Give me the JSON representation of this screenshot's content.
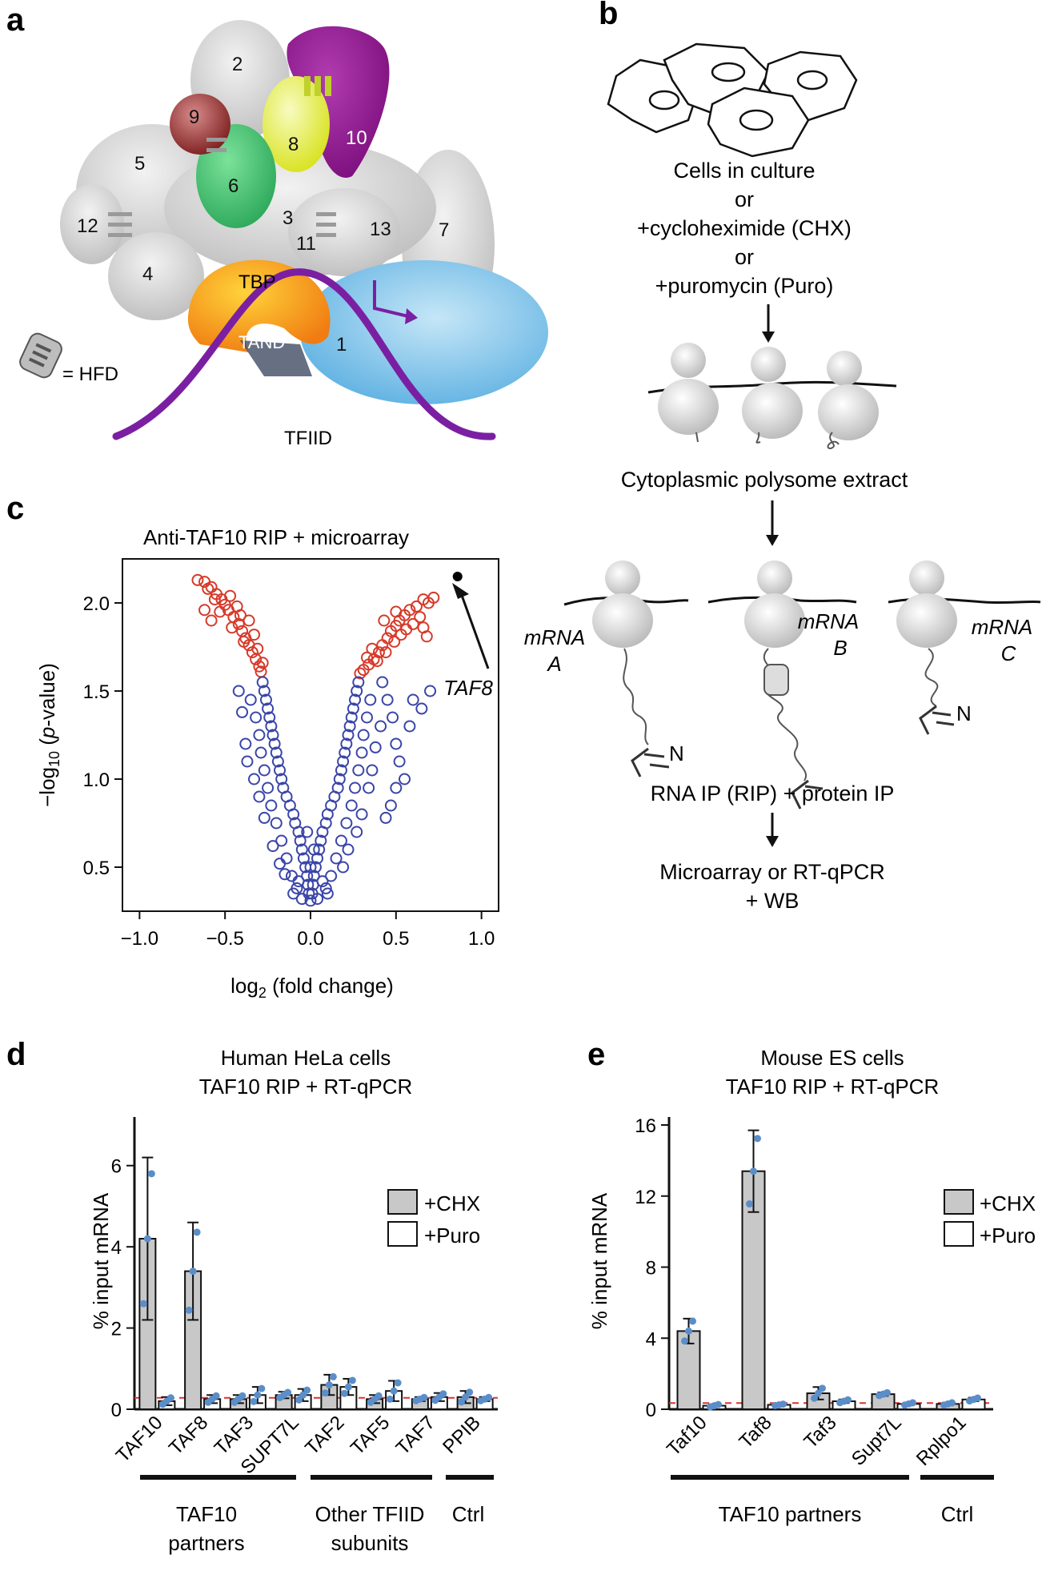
{
  "panel_labels": {
    "a": "a",
    "b": "b",
    "c": "c",
    "d": "d",
    "e": "e"
  },
  "panel_a": {
    "subunits": [
      "2",
      "9",
      "8",
      "10",
      "5",
      "6",
      "3",
      "12",
      "11",
      "13",
      "7",
      "4",
      "1"
    ],
    "tbp_label": "TBP",
    "tand_label": "TAND",
    "hfd_legend": "= HFD",
    "complex_label": "TFIID",
    "colors": {
      "taf10": "#8b1a8b",
      "taf8": "#e6ef3a",
      "taf6": "#3fbf6f",
      "taf9": "#8b2a2a",
      "tbp": "#f7a21b",
      "taf1": "#7cc3ea",
      "dna": "#7b1fa2",
      "grey": "#d9d9d9"
    }
  },
  "panel_b": {
    "conditions": [
      "Cells in culture",
      "or",
      "+cycloheximide (CHX)",
      "or",
      "+puromycin (Puro)"
    ],
    "step2": "Cytoplasmic polysome extract",
    "mrna_labels": [
      [
        "mRNA",
        "A"
      ],
      [
        "mRNA",
        "B"
      ],
      [
        "mRNA",
        "C"
      ]
    ],
    "nascent_label": "N",
    "step3": "RNA IP (RIP) + protein IP",
    "step4": [
      "Microarray or RT-qPCR",
      "+ WB"
    ]
  },
  "panel_c": {
    "chart_data": {
      "type": "scatter",
      "title": "Anti-TAF10 RIP + microarray",
      "xlabel": "log2 (fold change)",
      "ylabel": "−log10 (p-value)",
      "xlim": [
        -1.1,
        1.1
      ],
      "ylim": [
        0.25,
        2.25
      ],
      "xticks": [
        "−1.0",
        "−0.5",
        "0.0",
        "0.5",
        "1.0"
      ],
      "xtick_values": [
        -1.0,
        -0.5,
        0.0,
        0.5,
        1.0
      ],
      "yticks": [
        "0.5",
        "1.0",
        "1.5",
        "2.0"
      ],
      "ytick_values": [
        0.5,
        1.0,
        1.5,
        2.0
      ],
      "significance_threshold_y": 1.6,
      "colors": {
        "significant": "#d63a2a",
        "not_significant": "#3a45a8",
        "highlight": "#000000"
      },
      "highlight_point": {
        "label": "TAF8",
        "x": 0.86,
        "y": 2.15
      },
      "points": [
        [
          -0.66,
          2.13
        ],
        [
          -0.62,
          2.12
        ],
        [
          -0.58,
          2.09
        ],
        [
          -0.55,
          2.05
        ],
        [
          -0.52,
          2.02
        ],
        [
          -0.5,
          1.99
        ],
        [
          -0.48,
          1.96
        ],
        [
          -0.45,
          1.92
        ],
        [
          -0.42,
          1.88
        ],
        [
          -0.4,
          1.84
        ],
        [
          -0.38,
          1.8
        ],
        [
          -0.36,
          1.76
        ],
        [
          -0.34,
          1.72
        ],
        [
          -0.32,
          1.68
        ],
        [
          -0.3,
          1.64
        ],
        [
          -0.29,
          1.61
        ],
        [
          -0.6,
          2.08
        ],
        [
          -0.56,
          2.02
        ],
        [
          -0.47,
          2.04
        ],
        [
          -0.43,
          1.98
        ],
        [
          -0.36,
          1.9
        ],
        [
          -0.33,
          1.82
        ],
        [
          -0.31,
          1.74
        ],
        [
          -0.28,
          1.66
        ],
        [
          -0.53,
          1.95
        ],
        [
          -0.41,
          1.93
        ],
        [
          -0.46,
          1.86
        ],
        [
          -0.39,
          1.78
        ],
        [
          -0.62,
          1.96
        ],
        [
          -0.58,
          1.9
        ],
        [
          0.72,
          2.03
        ],
        [
          0.69,
          2.0
        ],
        [
          0.66,
          2.02
        ],
        [
          0.62,
          1.98
        ],
        [
          0.58,
          1.96
        ],
        [
          0.55,
          1.93
        ],
        [
          0.52,
          1.9
        ],
        [
          0.5,
          1.87
        ],
        [
          0.47,
          1.84
        ],
        [
          0.45,
          1.8
        ],
        [
          0.42,
          1.76
        ],
        [
          0.4,
          1.72
        ],
        [
          0.37,
          1.68
        ],
        [
          0.34,
          1.65
        ],
        [
          0.31,
          1.62
        ],
        [
          0.29,
          1.6
        ],
        [
          0.64,
          1.92
        ],
        [
          0.6,
          1.88
        ],
        [
          0.56,
          1.85
        ],
        [
          0.53,
          1.82
        ],
        [
          0.49,
          1.78
        ],
        [
          0.44,
          1.72
        ],
        [
          0.39,
          1.67
        ],
        [
          0.66,
          1.86
        ],
        [
          0.5,
          1.95
        ],
        [
          0.43,
          1.9
        ],
        [
          0.36,
          1.74
        ],
        [
          0.33,
          1.69
        ],
        [
          0.68,
          1.81
        ],
        [
          -0.28,
          1.55
        ],
        [
          -0.27,
          1.5
        ],
        [
          -0.26,
          1.45
        ],
        [
          -0.25,
          1.4
        ],
        [
          -0.24,
          1.35
        ],
        [
          -0.23,
          1.3
        ],
        [
          -0.22,
          1.25
        ],
        [
          -0.21,
          1.2
        ],
        [
          -0.2,
          1.15
        ],
        [
          -0.19,
          1.1
        ],
        [
          -0.18,
          1.05
        ],
        [
          -0.17,
          1.0
        ],
        [
          -0.16,
          0.95
        ],
        [
          -0.14,
          0.9
        ],
        [
          -0.12,
          0.85
        ],
        [
          -0.1,
          0.8
        ],
        [
          -0.09,
          0.75
        ],
        [
          -0.07,
          0.7
        ],
        [
          -0.06,
          0.65
        ],
        [
          -0.05,
          0.6
        ],
        [
          -0.04,
          0.55
        ],
        [
          -0.03,
          0.5
        ],
        [
          -0.02,
          0.45
        ],
        [
          -0.015,
          0.4
        ],
        [
          -0.01,
          0.35
        ],
        [
          0.0,
          0.31
        ],
        [
          0.01,
          0.35
        ],
        [
          0.015,
          0.4
        ],
        [
          0.02,
          0.45
        ],
        [
          0.03,
          0.5
        ],
        [
          0.04,
          0.55
        ],
        [
          0.05,
          0.6
        ],
        [
          0.06,
          0.65
        ],
        [
          0.07,
          0.7
        ],
        [
          0.09,
          0.75
        ],
        [
          0.1,
          0.8
        ],
        [
          0.12,
          0.85
        ],
        [
          0.14,
          0.9
        ],
        [
          0.16,
          0.95
        ],
        [
          0.17,
          1.0
        ],
        [
          0.18,
          1.05
        ],
        [
          0.19,
          1.1
        ],
        [
          0.2,
          1.15
        ],
        [
          0.21,
          1.2
        ],
        [
          0.22,
          1.25
        ],
        [
          0.23,
          1.3
        ],
        [
          0.24,
          1.35
        ],
        [
          0.25,
          1.4
        ],
        [
          0.26,
          1.45
        ],
        [
          0.27,
          1.5
        ],
        [
          0.28,
          1.55
        ],
        [
          -0.35,
          1.45
        ],
        [
          -0.32,
          1.35
        ],
        [
          -0.3,
          1.25
        ],
        [
          -0.29,
          1.15
        ],
        [
          -0.27,
          1.05
        ],
        [
          -0.25,
          0.95
        ],
        [
          -0.23,
          0.85
        ],
        [
          -0.2,
          0.75
        ],
        [
          -0.17,
          0.65
        ],
        [
          -0.14,
          0.55
        ],
        [
          -0.11,
          0.45
        ],
        [
          -0.08,
          0.38
        ],
        [
          0.35,
          1.45
        ],
        [
          0.33,
          1.35
        ],
        [
          0.31,
          1.25
        ],
        [
          0.3,
          1.15
        ],
        [
          0.28,
          1.05
        ],
        [
          0.26,
          0.95
        ],
        [
          0.24,
          0.85
        ],
        [
          0.21,
          0.75
        ],
        [
          0.18,
          0.65
        ],
        [
          0.15,
          0.55
        ],
        [
          0.12,
          0.45
        ],
        [
          0.09,
          0.38
        ],
        [
          -0.42,
          1.5
        ],
        [
          -0.4,
          1.38
        ],
        [
          -0.38,
          1.2
        ],
        [
          -0.37,
          1.1
        ],
        [
          -0.33,
          1.0
        ],
        [
          -0.3,
          0.9
        ],
        [
          -0.27,
          0.78
        ],
        [
          -0.22,
          0.62
        ],
        [
          -0.18,
          0.52
        ],
        [
          -0.15,
          0.46
        ],
        [
          0.42,
          1.55
        ],
        [
          0.45,
          1.45
        ],
        [
          0.48,
          1.35
        ],
        [
          0.5,
          1.2
        ],
        [
          0.52,
          1.1
        ],
        [
          0.55,
          1.0
        ],
        [
          0.41,
          1.3
        ],
        [
          0.38,
          1.18
        ],
        [
          0.36,
          1.05
        ],
        [
          0.34,
          0.95
        ],
        [
          0.3,
          0.8
        ],
        [
          0.27,
          0.7
        ],
        [
          0.22,
          0.6
        ],
        [
          0.19,
          0.5
        ],
        [
          0.5,
          0.95
        ],
        [
          0.47,
          0.85
        ],
        [
          0.44,
          0.78
        ],
        [
          0.7,
          1.5
        ],
        [
          0.6,
          1.45
        ],
        [
          0.58,
          1.3
        ],
        [
          0.65,
          1.4
        ],
        [
          -0.05,
          0.32
        ],
        [
          0.04,
          0.32
        ],
        [
          -0.1,
          0.35
        ],
        [
          0.1,
          0.35
        ],
        [
          0.07,
          0.42
        ],
        [
          -0.07,
          0.42
        ],
        [
          0.0,
          0.5
        ],
        [
          0.02,
          0.6
        ],
        [
          -0.02,
          0.7
        ]
      ]
    }
  },
  "panel_d": {
    "title": [
      "Human HeLa cells",
      "TAF10 RIP + RT-qPCR"
    ],
    "legend": [
      "+CHX",
      "+Puro"
    ],
    "groups": [
      "TAF10 partners",
      "Other TFIID subunits",
      "Ctrl"
    ],
    "group_labels": [
      [
        "TAF10",
        "partners"
      ],
      [
        "Other TFIID",
        "subunits"
      ],
      [
        "Ctrl"
      ]
    ],
    "chart_data": {
      "type": "bar",
      "title": "Human HeLa cells TAF10 RIP + RT-qPCR",
      "ylabel": "% input mRNA",
      "ylim": [
        0,
        7
      ],
      "yticks": [
        0,
        2,
        4,
        6
      ],
      "categories": [
        "TAF10",
        "TAF8",
        "TAF3",
        "SUPT7L",
        "TAF2",
        "TAF5",
        "TAF7",
        "PPIB"
      ],
      "series": [
        {
          "name": "+CHX",
          "color": "#c8c8c8",
          "values": [
            4.2,
            3.4,
            0.25,
            0.35,
            0.6,
            0.25,
            0.25,
            0.3
          ],
          "err": [
            2.0,
            1.2,
            0.1,
            0.08,
            0.25,
            0.1,
            0.05,
            0.15
          ]
        },
        {
          "name": "+Puro",
          "color": "#ffffff",
          "values": [
            0.2,
            0.25,
            0.35,
            0.35,
            0.55,
            0.45,
            0.3,
            0.25
          ],
          "err": [
            0.1,
            0.1,
            0.2,
            0.15,
            0.2,
            0.25,
            0.1,
            0.05
          ]
        }
      ],
      "baseline": 0.28,
      "point_color": "#5b8ec9"
    }
  },
  "panel_e": {
    "title": [
      "Mouse ES cells",
      "TAF10 RIP + RT-qPCR"
    ],
    "legend": [
      "+CHX",
      "+Puro"
    ],
    "groups": [
      "TAF10 partners",
      "Ctrl"
    ],
    "chart_data": {
      "type": "bar",
      "title": "Mouse ES cells TAF10 RIP + RT-qPCR",
      "ylabel": "% input mRNA",
      "ylim": [
        0,
        16
      ],
      "yticks": [
        0,
        4,
        8,
        12,
        16
      ],
      "categories": [
        "Taf10",
        "Taf8",
        "Taf3",
        "Supt7L",
        "Rplpo1"
      ],
      "series": [
        {
          "name": "+CHX",
          "color": "#c8c8c8",
          "values": [
            4.4,
            13.4,
            0.9,
            0.85,
            0.3
          ],
          "err": [
            0.7,
            2.3,
            0.35,
            0.1,
            0.08
          ]
        },
        {
          "name": "+Puro",
          "color": "#ffffff",
          "values": [
            0.2,
            0.25,
            0.45,
            0.3,
            0.55
          ],
          "err": [
            0.08,
            0.05,
            0.1,
            0.08,
            0.1
          ]
        }
      ],
      "baseline": 0.35,
      "point_color": "#5b8ec9"
    }
  }
}
